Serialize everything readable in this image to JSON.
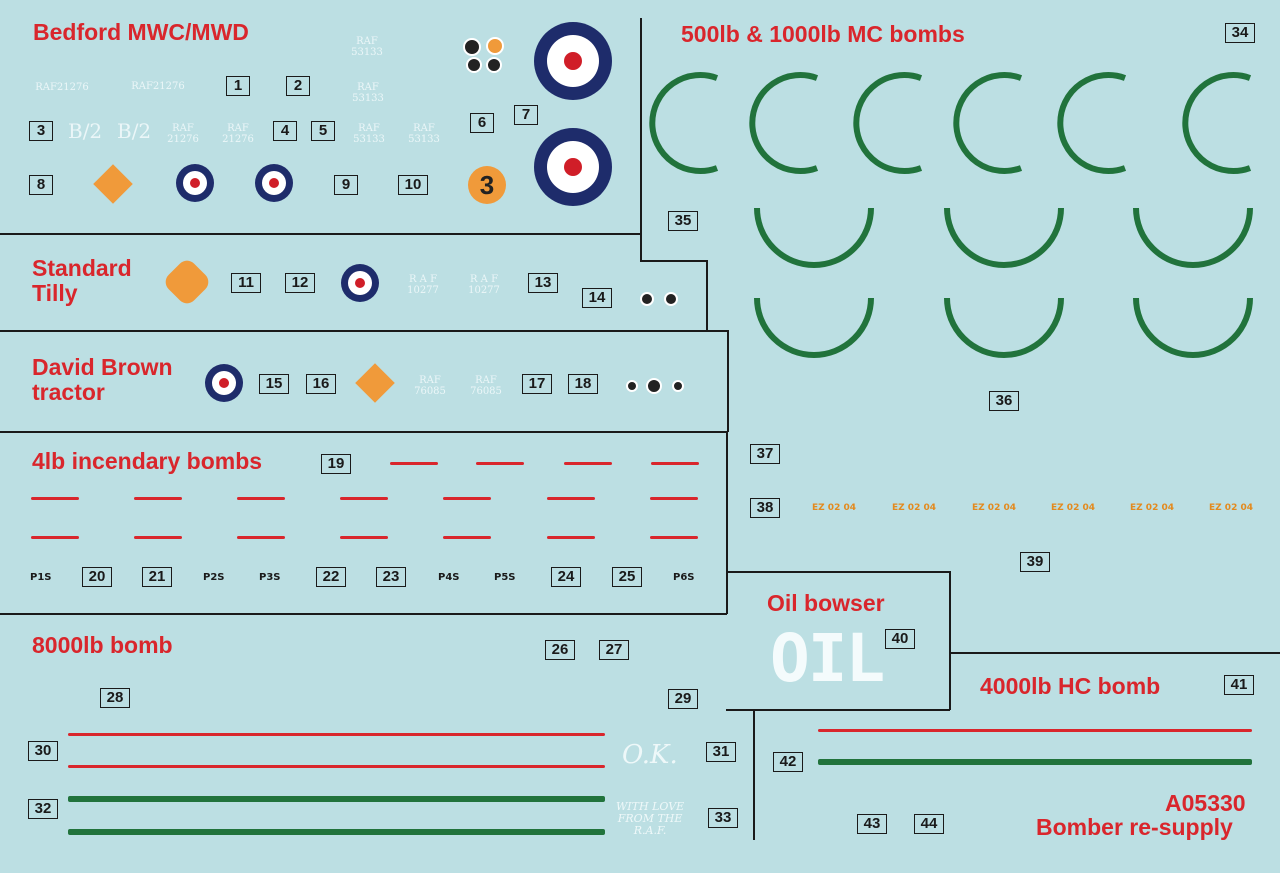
{
  "sheet": {
    "product_code": "A05330",
    "product_title": "Bomber re-supply"
  },
  "sections": {
    "bedford": "Bedford MWC/MWD",
    "mc_bombs": "500lb & 1000lb MC bombs",
    "tilly": "Standard\nTilly",
    "tractor": "David Brown\ntractor",
    "incendiary": "4lb incendary bombs",
    "bomb8000": "8000lb bomb",
    "oil": "Oil bowser",
    "hc4000": "4000lb HC bomb"
  },
  "markings": {
    "raf53133_a": "RAF 53133",
    "raf53133_b": "RAF 53133",
    "raf21276_a": "RAF21276",
    "raf21276_b": "RAF21276",
    "b2_a": "B/2",
    "b2_b": "B/2",
    "raf21276_c": "RAF\n21276",
    "raf21276_d": "RAF\n21276",
    "raf53133_c": "RAF\n53133",
    "raf53133_d": "RAF\n53133",
    "vehicle_no": "3",
    "raf10277_a": "R A F\n10277",
    "raf10277_b": "R A F\n10277",
    "raf76085_a": "RAF\n76085",
    "raf76085_b": "RAF\n76085",
    "oil_word": "OIL",
    "ok": "O.K.",
    "with_love": "WITH LOVE\nFROM THE\nR.A.F."
  },
  "positions": {
    "p1s": "P1S",
    "p2s": "P2S",
    "p3s": "P3S",
    "p4s": "P4S",
    "p5s": "P5S",
    "p6s": "P6S"
  },
  "ez_code": "EZ 02 04",
  "decal_numbers": [
    "1",
    "2",
    "3",
    "4",
    "5",
    "6",
    "7",
    "8",
    "9",
    "10",
    "11",
    "12",
    "13",
    "14",
    "15",
    "16",
    "17",
    "18",
    "19",
    "20",
    "21",
    "22",
    "23",
    "24",
    "25",
    "26",
    "27",
    "28",
    "29",
    "30",
    "31",
    "32",
    "33",
    "34",
    "35",
    "36",
    "37",
    "38",
    "39",
    "40",
    "41",
    "42",
    "43",
    "44"
  ],
  "colors": {
    "background": "#bcdfe3",
    "title_red": "#d9262c",
    "roundel_blue": "#1e2c6b",
    "roundel_red": "#d01e28",
    "bomb_green": "#21733c",
    "vehicle_orange": "#f09a3a"
  }
}
